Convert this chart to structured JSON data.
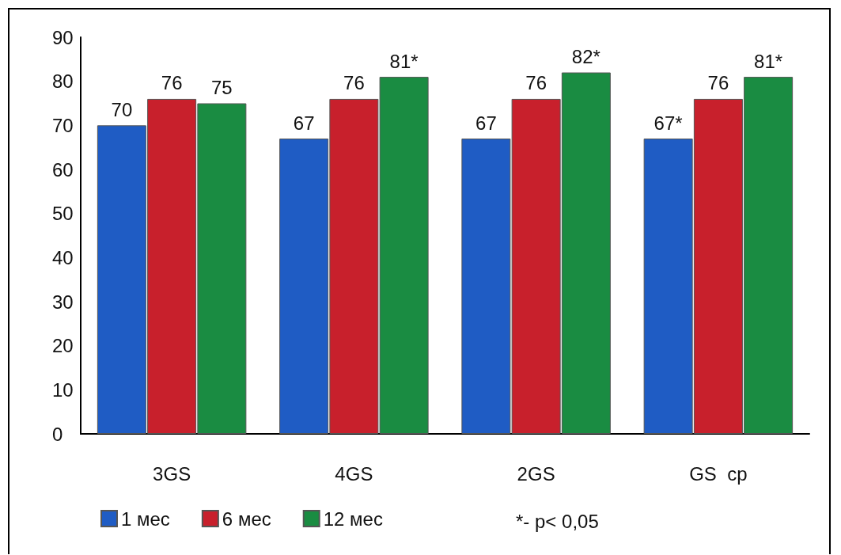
{
  "chart_data": {
    "type": "bar",
    "categories": [
      "3GS",
      "4GS",
      "2GS",
      "GS  ср"
    ],
    "series": [
      {
        "name": "1 мес",
        "color": "#1f5cc4",
        "values": [
          70,
          67,
          67,
          67
        ],
        "value_labels": [
          "70",
          "67",
          "67",
          "67*"
        ]
      },
      {
        "name": "6 мес",
        "color": "#c8202c",
        "values": [
          76,
          76,
          76,
          76
        ],
        "value_labels": [
          "76",
          "76",
          "76",
          "76"
        ]
      },
      {
        "name": "12 мес",
        "color": "#1a8c42",
        "values": [
          75,
          81,
          82,
          81
        ],
        "value_labels": [
          "75",
          "81*",
          "82*",
          "81*"
        ]
      }
    ],
    "ylim": [
      0,
      90
    ],
    "yticks": [
      0,
      10,
      20,
      30,
      40,
      50,
      60,
      70,
      80,
      90
    ],
    "grid": false,
    "legend": "bottom left",
    "annotations": [
      "*- p< 0,05"
    ]
  }
}
